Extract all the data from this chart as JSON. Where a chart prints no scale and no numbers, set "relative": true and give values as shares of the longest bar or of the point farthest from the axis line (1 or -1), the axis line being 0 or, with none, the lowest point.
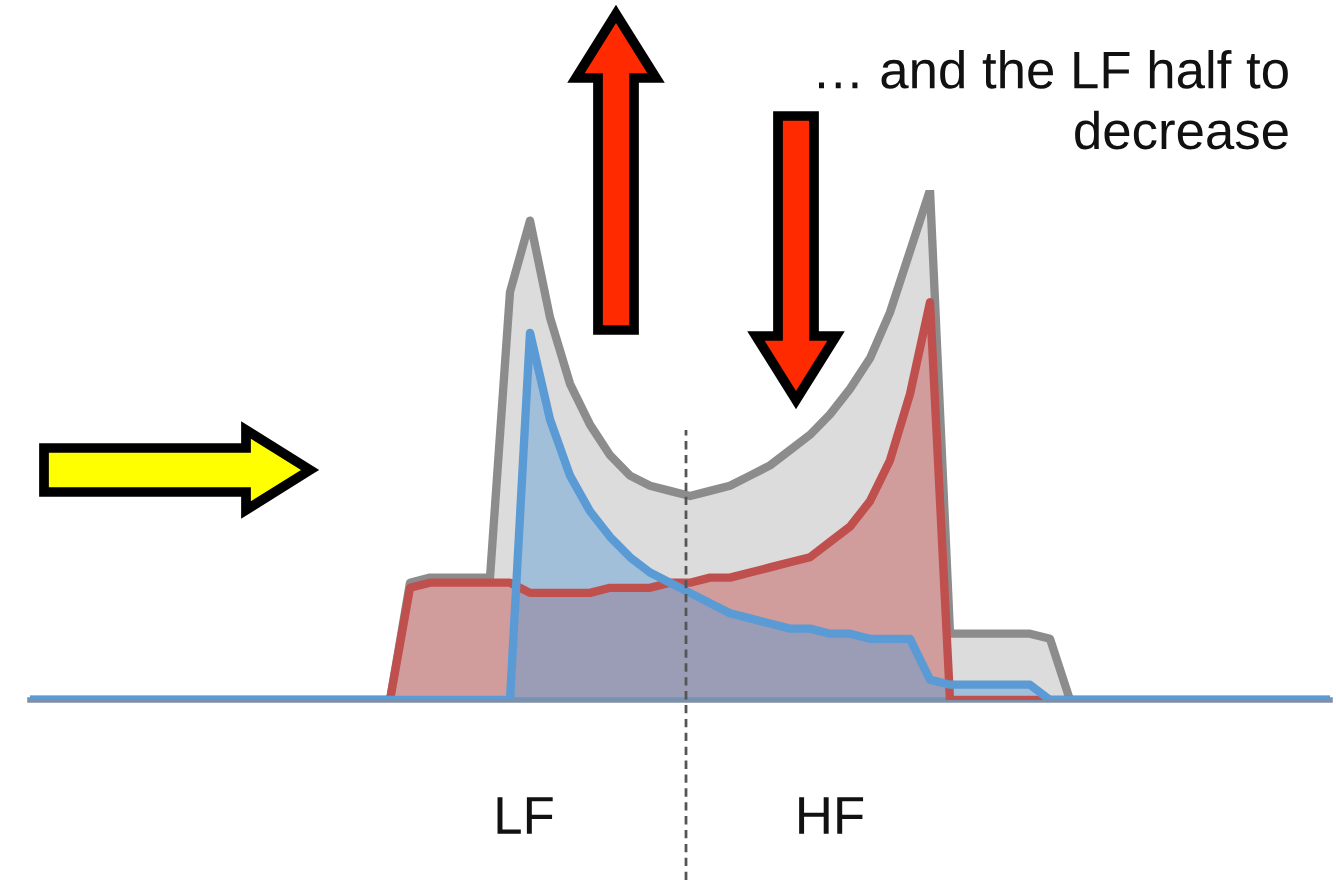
{
  "chart_data": {
    "type": "area",
    "relative": true,
    "categories": [
      null,
      null,
      null,
      null,
      null,
      null,
      null,
      null,
      null,
      null,
      null,
      null,
      null,
      null,
      null,
      null,
      null,
      null,
      null,
      null,
      null,
      null,
      null,
      null,
      null,
      null,
      null,
      null,
      null,
      null,
      null,
      null,
      null,
      null,
      null,
      null,
      null,
      null,
      null,
      null,
      null,
      null,
      null,
      null,
      null,
      null,
      null,
      null,
      null,
      null,
      null,
      null,
      null,
      null,
      null,
      null,
      null,
      null,
      null,
      null,
      null,
      null,
      null,
      null,
      null,
      null
    ],
    "series": [
      {
        "color": "#8c8c8c",
        "values": [
          0,
          0,
          0,
          0,
          0,
          0,
          0,
          0,
          0,
          0,
          0,
          0,
          0,
          0,
          0,
          0,
          0,
          0,
          0,
          0.23,
          0.24,
          0.24,
          0.24,
          0.24,
          0.8,
          0.94,
          0.75,
          0.62,
          0.54,
          0.48,
          0.44,
          0.42,
          0.41,
          0.4,
          0.41,
          0.42,
          0.44,
          0.46,
          0.49,
          0.52,
          0.56,
          0.61,
          0.67,
          0.76,
          0.88,
          1.0,
          0.13,
          0.13,
          0.13,
          0.13,
          0.13,
          0.12,
          0,
          0,
          0,
          0,
          0,
          0,
          0,
          0,
          0,
          0,
          0,
          0,
          0,
          0
        ]
      },
      {
        "color": "#c0504d",
        "values": [
          0,
          0,
          0,
          0,
          0,
          0,
          0,
          0,
          0,
          0,
          0,
          0,
          0,
          0,
          0,
          0,
          0,
          0,
          0,
          0.22,
          0.23,
          0.23,
          0.23,
          0.23,
          0.23,
          0.21,
          0.21,
          0.21,
          0.21,
          0.22,
          0.22,
          0.22,
          0.23,
          0.23,
          0.24,
          0.24,
          0.25,
          0.26,
          0.27,
          0.28,
          0.31,
          0.34,
          0.39,
          0.47,
          0.6,
          0.78,
          0,
          0,
          0,
          0,
          0,
          0,
          0,
          0,
          0,
          0,
          0,
          0,
          0,
          0,
          0,
          0,
          0,
          0,
          0,
          0
        ]
      },
      {
        "color": "#5b9bd5",
        "values": [
          0,
          0,
          0,
          0,
          0,
          0,
          0,
          0,
          0,
          0,
          0,
          0,
          0,
          0,
          0,
          0,
          0,
          0,
          0,
          0,
          0,
          0,
          0,
          0,
          0,
          0.72,
          0.55,
          0.44,
          0.37,
          0.32,
          0.28,
          0.25,
          0.23,
          0.21,
          0.19,
          0.17,
          0.16,
          0.15,
          0.14,
          0.14,
          0.13,
          0.13,
          0.12,
          0.12,
          0.12,
          0.04,
          0.03,
          0.03,
          0.03,
          0.03,
          0.03,
          0,
          0,
          0,
          0,
          0,
          0,
          0,
          0,
          0,
          0,
          0,
          0,
          0,
          0,
          0
        ]
      }
    ],
    "annotations": [
      "… and the LF half to\ndecrease",
      "LF",
      "HF"
    ],
    "grid": false,
    "legend": false
  }
}
